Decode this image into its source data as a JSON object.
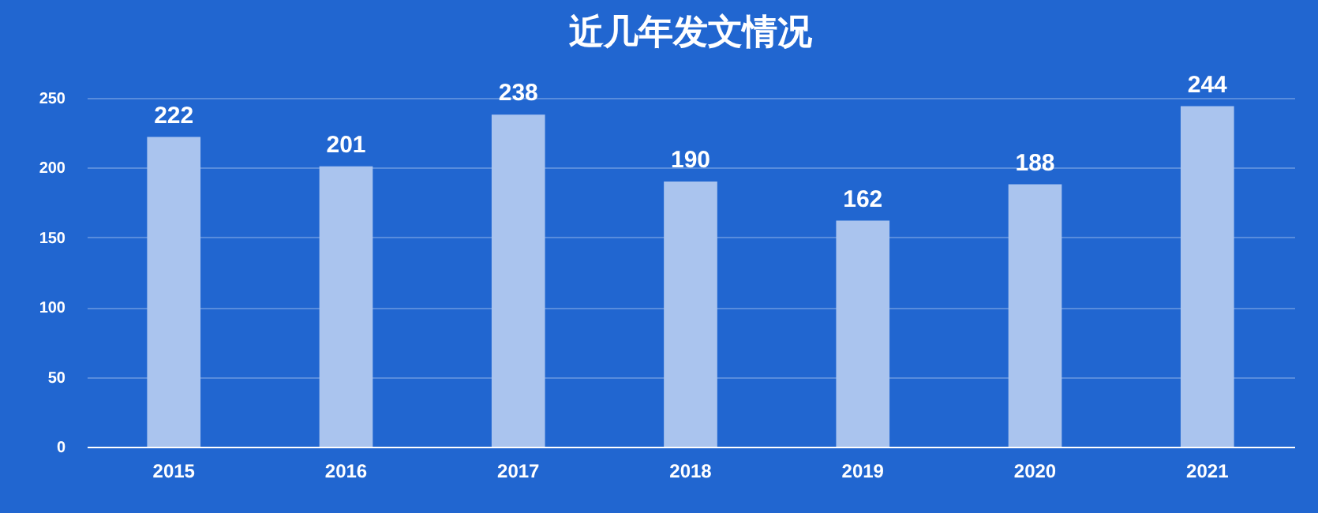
{
  "chart_data": {
    "type": "bar",
    "title": "近几年发文情况",
    "categories": [
      "2015",
      "2016",
      "2017",
      "2018",
      "2019",
      "2020",
      "2021"
    ],
    "values": [
      222,
      201,
      238,
      190,
      162,
      188,
      244
    ],
    "color": "#aac4ee",
    "ylim": [
      0,
      250
    ],
    "yticks": [
      0,
      50,
      100,
      150,
      200,
      250
    ],
    "grid": "y",
    "data_labels": true
  }
}
